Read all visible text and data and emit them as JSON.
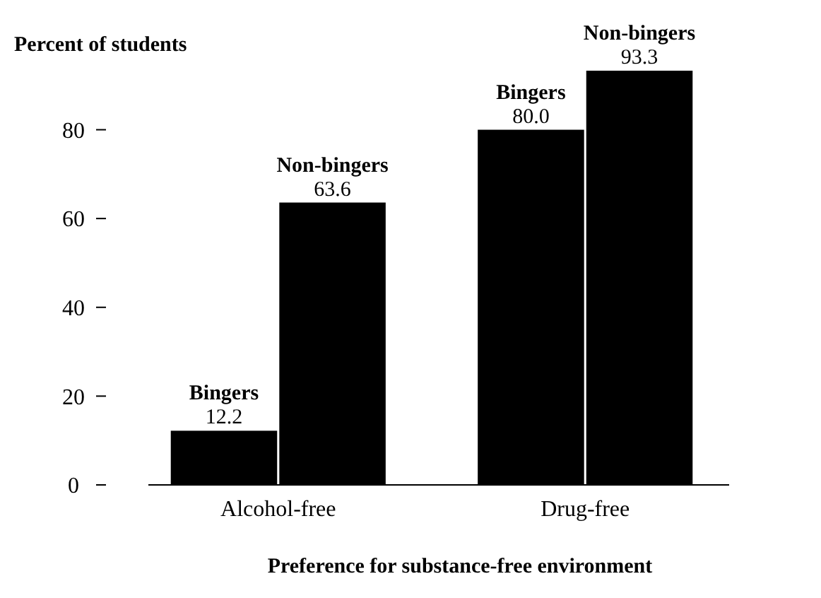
{
  "chart_data": {
    "type": "bar",
    "ylabel": "Percent of students",
    "xlabel": "Preference for substance-free environment",
    "categories": [
      "Alcohol-free",
      "Drug-free"
    ],
    "series": [
      {
        "name": "Bingers",
        "color": "#000000",
        "values": [
          12.2,
          80.0
        ],
        "value_labels": [
          "12.2",
          "80.0"
        ]
      },
      {
        "name": "Non-bingers",
        "color": "#000000",
        "values": [
          63.6,
          93.3
        ],
        "value_labels": [
          "63.6",
          "93.3"
        ]
      }
    ],
    "ylim": [
      0,
      93.3
    ],
    "yticks": [
      0,
      20,
      40,
      60,
      80
    ]
  }
}
